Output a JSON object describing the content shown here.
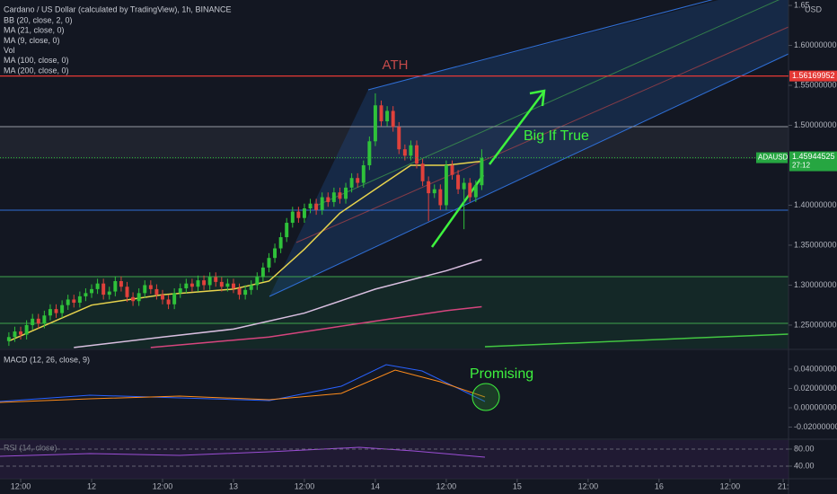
{
  "chart_data": {
    "type": "candlestick",
    "title": "Cardano / US Dollar (calculated by TradingView), 1h, BINANCE",
    "indicators": [
      "BB (20, close, 2, 0)",
      "MA (21, close, 0)",
      "MA (9, close, 0)",
      "Vol",
      "MA (100, close, 0)",
      "MA (200, close, 0)"
    ],
    "currency": "USD",
    "symbol": "ADAUSD",
    "countdown": "27:12",
    "annotations": {
      "ath": "ATH",
      "target": "Big If True",
      "macd_note": "Promising"
    },
    "up_color": "#2fc23a",
    "down_color": "#e0413b",
    "x": [
      -14,
      -13,
      -12,
      -11,
      -10,
      -9,
      -8,
      -7,
      -6,
      -5,
      -4,
      -3,
      -2,
      -1,
      0,
      1,
      2,
      3,
      4,
      5,
      6,
      7,
      8,
      9,
      10,
      11,
      12,
      13,
      14,
      15,
      16,
      17,
      18,
      19,
      20,
      21,
      22,
      23,
      24,
      25,
      26,
      27,
      28,
      29,
      30,
      31,
      32,
      33,
      34,
      35,
      36,
      37,
      38,
      39,
      40,
      41,
      42,
      43,
      44,
      45,
      46,
      47,
      48,
      49,
      50,
      51,
      52,
      53,
      54,
      55,
      56,
      57,
      58,
      59,
      60,
      61,
      62,
      63,
      64,
      65,
      66
    ],
    "open": [
      1.23,
      1.235,
      1.242,
      1.238,
      1.25,
      1.258,
      1.252,
      1.262,
      1.27,
      1.265,
      1.275,
      1.282,
      1.278,
      1.286,
      1.29,
      1.295,
      1.302,
      1.288,
      1.292,
      1.305,
      1.298,
      1.285,
      1.28,
      1.29,
      1.3,
      1.295,
      1.288,
      1.282,
      1.276,
      1.29,
      1.296,
      1.302,
      1.298,
      1.306,
      1.3,
      1.31,
      1.304,
      1.298,
      1.302,
      1.296,
      1.288,
      1.294,
      1.3,
      1.31,
      1.322,
      1.334,
      1.346,
      1.36,
      1.378,
      1.392,
      1.384,
      1.396,
      1.402,
      1.394,
      1.41,
      1.404,
      1.416,
      1.408,
      1.422,
      1.434,
      1.428,
      1.45,
      1.48,
      1.525,
      1.505,
      1.518,
      1.498,
      1.47,
      1.462,
      1.475,
      1.452,
      1.43,
      1.415,
      1.42,
      1.4,
      1.45,
      1.438,
      1.42,
      1.428,
      1.41,
      1.425
    ],
    "high": [
      1.241,
      1.248,
      1.248,
      1.256,
      1.264,
      1.264,
      1.268,
      1.276,
      1.276,
      1.281,
      1.288,
      1.288,
      1.292,
      1.296,
      1.301,
      1.308,
      1.308,
      1.298,
      1.311,
      1.311,
      1.304,
      1.291,
      1.296,
      1.306,
      1.306,
      1.301,
      1.294,
      1.288,
      1.296,
      1.302,
      1.308,
      1.308,
      1.312,
      1.312,
      1.316,
      1.316,
      1.31,
      1.308,
      1.308,
      1.302,
      1.3,
      1.306,
      1.316,
      1.328,
      1.34,
      1.352,
      1.366,
      1.384,
      1.398,
      1.398,
      1.402,
      1.408,
      1.408,
      1.416,
      1.416,
      1.422,
      1.422,
      1.428,
      1.44,
      1.44,
      1.456,
      1.486,
      1.54,
      1.531,
      1.524,
      1.524,
      1.504,
      1.476,
      1.481,
      1.481,
      1.458,
      1.436,
      1.426,
      1.426,
      1.456,
      1.456,
      1.444,
      1.434,
      1.434,
      1.431,
      1.47
    ],
    "low": [
      1.224,
      1.229,
      1.232,
      1.232,
      1.244,
      1.246,
      1.246,
      1.256,
      1.259,
      1.259,
      1.269,
      1.272,
      1.272,
      1.28,
      1.284,
      1.289,
      1.282,
      1.282,
      1.286,
      1.292,
      1.279,
      1.274,
      1.274,
      1.284,
      1.289,
      1.282,
      1.276,
      1.27,
      1.27,
      1.284,
      1.29,
      1.292,
      1.292,
      1.294,
      1.294,
      1.298,
      1.292,
      1.292,
      1.29,
      1.282,
      1.282,
      1.288,
      1.294,
      1.304,
      1.316,
      1.328,
      1.34,
      1.354,
      1.372,
      1.378,
      1.378,
      1.39,
      1.388,
      1.388,
      1.398,
      1.398,
      1.402,
      1.402,
      1.416,
      1.422,
      1.422,
      1.444,
      1.474,
      1.499,
      1.499,
      1.492,
      1.464,
      1.456,
      1.456,
      1.446,
      1.424,
      1.38,
      1.409,
      1.394,
      1.394,
      1.432,
      1.414,
      1.37,
      1.404,
      1.404,
      1.419
    ],
    "close": [
      1.235,
      1.242,
      1.238,
      1.25,
      1.258,
      1.252,
      1.262,
      1.27,
      1.265,
      1.275,
      1.282,
      1.278,
      1.286,
      1.29,
      1.295,
      1.302,
      1.288,
      1.292,
      1.305,
      1.298,
      1.285,
      1.28,
      1.29,
      1.3,
      1.295,
      1.288,
      1.282,
      1.276,
      1.29,
      1.296,
      1.302,
      1.298,
      1.306,
      1.3,
      1.31,
      1.304,
      1.298,
      1.302,
      1.296,
      1.288,
      1.294,
      1.3,
      1.31,
      1.322,
      1.334,
      1.346,
      1.36,
      1.378,
      1.392,
      1.384,
      1.396,
      1.402,
      1.394,
      1.41,
      1.404,
      1.416,
      1.408,
      1.422,
      1.434,
      1.428,
      1.45,
      1.48,
      1.525,
      1.505,
      1.518,
      1.498,
      1.47,
      1.462,
      1.475,
      1.452,
      1.43,
      1.415,
      1.42,
      1.4,
      1.45,
      1.438,
      1.42,
      1.428,
      1.41,
      1.425,
      1.459
    ],
    "overlays": [
      {
        "name": "MA (21, close, 0)",
        "color": "#e8d44d",
        "x": [
          -14,
          0,
          12,
          24,
          30,
          36,
          42,
          48,
          54,
          60,
          66
        ],
        "values": [
          1.23,
          1.275,
          1.288,
          1.295,
          1.305,
          1.345,
          1.39,
          1.42,
          1.45,
          1.45,
          1.455
        ]
      },
      {
        "name": "MA (100, close, 0)",
        "color": "#d9bfe0",
        "x": [
          -3,
          12,
          24,
          36,
          48,
          60,
          66
        ],
        "values": [
          1.222,
          1.235,
          1.245,
          1.265,
          1.295,
          1.318,
          1.332
        ]
      },
      {
        "name": "MA (200, close, 0)",
        "color": "#d6457e",
        "x": [
          10,
          30,
          48,
          60,
          66
        ],
        "values": [
          1.222,
          1.235,
          1.255,
          1.268,
          1.273
        ]
      }
    ],
    "ath_price": {
      "value": 1.56169952,
      "label": "1.56169952"
    },
    "last_price": {
      "value": 1.45944525,
      "label": "1.45944525"
    },
    "xlim": [
      -15.5,
      117.9
    ],
    "xticks": [
      {
        "value": -12,
        "label": "12:00"
      },
      {
        "value": 0,
        "label": "12"
      },
      {
        "value": 12,
        "label": "12:00"
      },
      {
        "value": 24,
        "label": "13"
      },
      {
        "value": 36,
        "label": "12:00"
      },
      {
        "value": 48,
        "label": "14"
      },
      {
        "value": 60,
        "label": "12:00"
      },
      {
        "value": 72,
        "label": "15"
      },
      {
        "value": 84,
        "label": "12:00"
      },
      {
        "value": 96,
        "label": "16"
      },
      {
        "value": 108,
        "label": "12:00"
      },
      {
        "value": 117,
        "label": "21:"
      }
    ],
    "ylim": [
      1.2207,
      1.6568
    ],
    "yticks": [
      {
        "value": 1.25,
        "label": "1.25000000"
      },
      {
        "value": 1.3,
        "label": "1.30000000"
      },
      {
        "value": 1.35,
        "label": "1.35000000"
      },
      {
        "value": 1.4,
        "label": "1.40000000"
      },
      {
        "value": 1.5,
        "label": "1.50000000"
      },
      {
        "value": 1.55,
        "label": "1.55000000"
      },
      {
        "value": 1.6,
        "label": "1.60000000"
      },
      {
        "value": 1.65,
        "label": "1.65"
      }
    ],
    "macd": {
      "title": "MACD (12, 26, close, 9)",
      "ylim": [
        -0.0316,
        0.0595
      ],
      "yticks": [
        {
          "value": 0.04,
          "label": "0.04000000"
        },
        {
          "value": 0.02,
          "label": "0.02000000"
        },
        {
          "value": 0,
          "label": "0.00000000"
        },
        {
          "value": -0.02,
          "label": "-0.02000000"
        }
      ]
    },
    "rsi": {
      "title": "RSI (14, close)",
      "ylim": [
        10.5,
        101
      ],
      "yticks": [
        {
          "value": 80,
          "label": "80.00"
        },
        {
          "value": 40,
          "label": "40.00"
        }
      ]
    }
  }
}
